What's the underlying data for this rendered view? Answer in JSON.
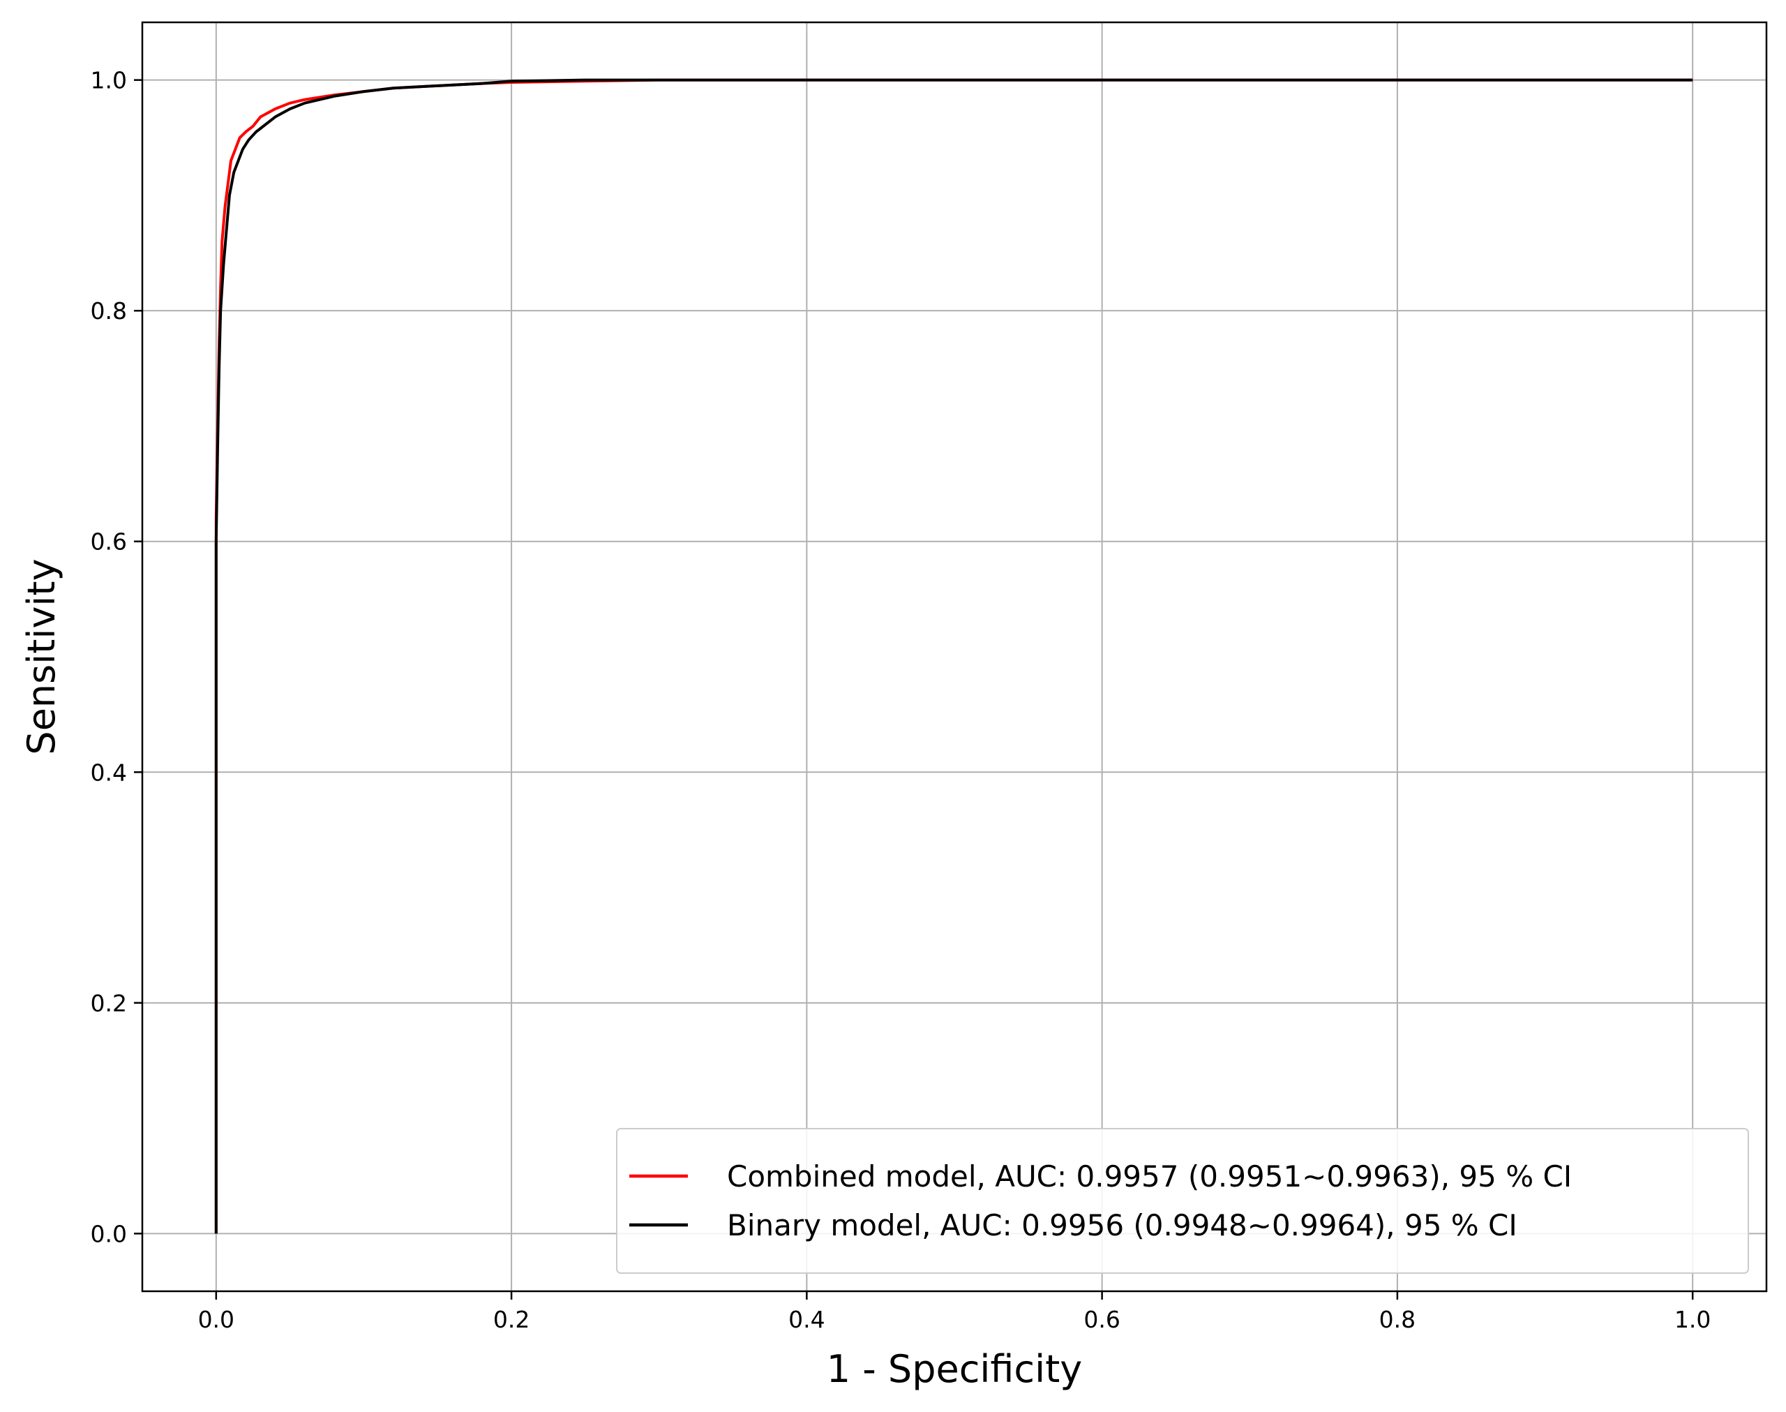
{
  "chart_data": {
    "type": "line",
    "title": "",
    "xlabel": "1 - Specificity",
    "ylabel": "Sensitivity",
    "xlim": [
      -0.05,
      1.05
    ],
    "ylim": [
      -0.05,
      1.05
    ],
    "xticks": [
      "0.0",
      "0.2",
      "0.4",
      "0.6",
      "0.8",
      "1.0"
    ],
    "yticks": [
      "0.0",
      "0.2",
      "0.4",
      "0.6",
      "0.8",
      "1.0"
    ],
    "grid": true,
    "legend_position": "lower-right",
    "series": [
      {
        "name": "Combined model, AUC: 0.9957 (0.9951~0.9963), 95 % CI",
        "color": "#ff0000",
        "x": [
          0,
          0,
          0,
          0.001,
          0.002,
          0.003,
          0.004,
          0.006,
          0.008,
          0.01,
          0.013,
          0.016,
          0.02,
          0.025,
          0.03,
          0.04,
          0.05,
          0.06,
          0.08,
          0.1,
          0.12,
          0.15,
          0.18,
          0.2,
          0.25,
          0.3,
          0.4,
          0.6,
          0.8,
          1.0
        ],
        "y": [
          0,
          0.4,
          0.62,
          0.7,
          0.77,
          0.82,
          0.86,
          0.89,
          0.91,
          0.93,
          0.94,
          0.95,
          0.955,
          0.96,
          0.968,
          0.975,
          0.98,
          0.983,
          0.987,
          0.99,
          0.993,
          0.995,
          0.997,
          0.998,
          0.999,
          1.0,
          1.0,
          1.0,
          1.0,
          1.0
        ]
      },
      {
        "name": "Binary model, AUC: 0.9956 (0.9948~0.9964), 95 % CI",
        "color": "#000000",
        "x": [
          0,
          0,
          0,
          0.001,
          0.002,
          0.003,
          0.005,
          0.007,
          0.009,
          0.012,
          0.015,
          0.018,
          0.022,
          0.027,
          0.032,
          0.04,
          0.05,
          0.06,
          0.08,
          0.1,
          0.12,
          0.15,
          0.18,
          0.2,
          0.25,
          0.3,
          0.4,
          0.6,
          0.8,
          1.0
        ],
        "y": [
          0,
          0.4,
          0.6,
          0.68,
          0.75,
          0.8,
          0.84,
          0.87,
          0.9,
          0.92,
          0.93,
          0.94,
          0.948,
          0.955,
          0.96,
          0.968,
          0.975,
          0.98,
          0.986,
          0.99,
          0.993,
          0.995,
          0.997,
          0.999,
          1.0,
          1.0,
          1.0,
          1.0,
          1.0,
          1.0
        ]
      }
    ]
  }
}
